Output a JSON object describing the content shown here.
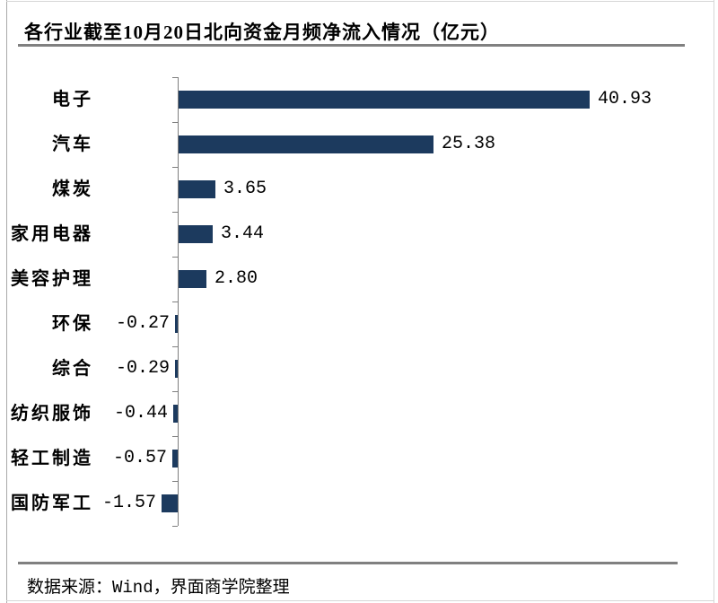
{
  "title": "各行业截至10月20日北向资金月频净流入情况（亿元）",
  "footer": {
    "source_text": "数据来源：Wind，界面商学院整理"
  },
  "colors": {
    "bar": "#1C3A5E",
    "axis": "#7f7f7f",
    "separator": "#808080",
    "text": "#000000"
  },
  "chart_data": {
    "type": "bar",
    "orientation": "horizontal",
    "title": "各行业截至10月20日北向资金月频净流入情况（亿元）",
    "unit": "亿元",
    "categories": [
      "电子",
      "汽车",
      "煤炭",
      "家用电器",
      "美容护理",
      "环保",
      "综合",
      "纺织服饰",
      "轻工制造",
      "国防军工"
    ],
    "values": [
      40.93,
      25.38,
      3.65,
      3.44,
      2.8,
      -0.27,
      -0.29,
      -0.44,
      -0.57,
      -1.57
    ],
    "value_labels": [
      "40.93",
      "25.38",
      "3.65",
      "3.44",
      "2.80",
      "-0.27",
      "-0.29",
      "-0.44",
      "-0.57",
      "-1.57"
    ],
    "xlim": [
      -2,
      50
    ],
    "grid": false,
    "legend": false,
    "data_label_position": "outside-end"
  }
}
